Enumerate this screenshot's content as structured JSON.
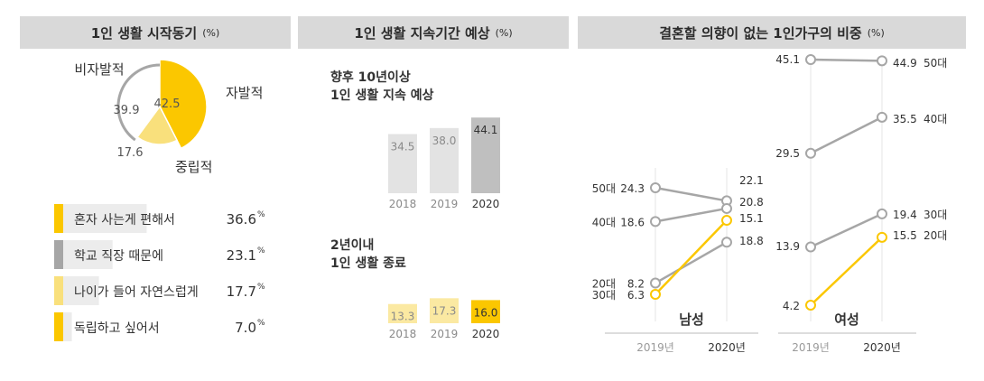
{
  "headers": [
    {
      "title": "1인 생활 시작동기",
      "unit": "(%)"
    },
    {
      "title": "1인 생활 지속기간 예상",
      "unit": "(%)"
    },
    {
      "title": "결혼할 의향이 없는 1인가구의 비중",
      "unit": "(%)"
    }
  ],
  "panel2": {
    "block1_title_1": "향후 10년이상",
    "block1_title_2": "1인 생활 지속 예상",
    "block2_title_1": "2년이내",
    "block2_title_2": "1인 생활 종료"
  },
  "panel3": {
    "male_label": "남성",
    "female_label": "여성"
  },
  "colors": {
    "yellow": "#fbc700",
    "light_yellow": "#f9e07c",
    "pale_yellow": "#fbe9a2",
    "gray": "#a6a6a6",
    "dark_gray": "#bfbfbf",
    "light_gray": "#e3e3e3",
    "header_bg": "#d9d9d9"
  },
  "chart_data": [
    {
      "type": "pie",
      "title": "1인 생활 시작동기",
      "unit": "(%)",
      "slices": [
        {
          "label": "자발적",
          "value": 42.5,
          "color": "#fbc700"
        },
        {
          "label": "중립적",
          "value": 17.6,
          "color": "#f9e07c"
        },
        {
          "label": "비자발적",
          "value": 39.9,
          "color": "#a6a6a6"
        }
      ]
    },
    {
      "type": "bar",
      "orientation": "horizontal",
      "categories": [
        "혼자 사는게 편해서",
        "학교 직장 때문에",
        "나이가 들어 자연스럽게",
        "독립하고 싶어서"
      ],
      "values": [
        36.6,
        23.1,
        17.7,
        7.0
      ],
      "value_labels": [
        "36.6",
        "23.1",
        "17.7",
        "7.0"
      ],
      "value_suffix": "%",
      "colors": [
        "#fbc700",
        "#a6a6a6",
        "#f9e07c",
        "#fbc700"
      ],
      "xlim": [
        0,
        40
      ]
    },
    {
      "type": "bar",
      "title": "향후 10년이상 1인 생활 지속 예상",
      "categories": [
        "2018",
        "2019",
        "2020"
      ],
      "values": [
        34.5,
        38.0,
        44.1
      ],
      "value_labels": [
        "34.5",
        "38.0",
        "44.1"
      ],
      "colors": [
        "#e3e3e3",
        "#e3e3e3",
        "#bfbfbf"
      ]
    },
    {
      "type": "bar",
      "title": "2년이내 1인 생활 종료",
      "categories": [
        "2018",
        "2019",
        "2020"
      ],
      "values": [
        13.3,
        17.3,
        16.0
      ],
      "value_labels": [
        "13.3",
        "17.3",
        "16.0"
      ],
      "colors": [
        "#fbe9a2",
        "#fbe9a2",
        "#fbc700"
      ]
    },
    {
      "type": "line",
      "title": "남성",
      "x": [
        "2019년",
        "2020년"
      ],
      "series": [
        {
          "name": "50대",
          "values": [
            24.3,
            22.1
          ],
          "labels": [
            "24.3",
            "22.1"
          ],
          "color": "#a6a6a6"
        },
        {
          "name": "40대",
          "values": [
            18.6,
            20.8
          ],
          "labels": [
            "18.6",
            "20.8"
          ],
          "color": "#a6a6a6"
        },
        {
          "name": "20대",
          "values": [
            8.2,
            15.1
          ],
          "labels": [
            "8.2",
            "15.1"
          ],
          "color": "#a6a6a6"
        },
        {
          "name": "30대",
          "values": [
            6.3,
            18.8
          ],
          "labels": [
            "6.3",
            "18.8"
          ],
          "color": "#fbc700"
        }
      ]
    },
    {
      "type": "line",
      "title": "여성",
      "x": [
        "2019년",
        "2020년"
      ],
      "series": [
        {
          "name": "50대",
          "values": [
            45.1,
            44.9
          ],
          "labels": [
            "45.1",
            "44.9"
          ],
          "color": "#a6a6a6"
        },
        {
          "name": "40대",
          "values": [
            29.5,
            35.5
          ],
          "labels": [
            "29.5",
            "35.5"
          ],
          "color": "#a6a6a6"
        },
        {
          "name": "30대",
          "values": [
            13.9,
            19.4
          ],
          "labels": [
            "13.9",
            "19.4"
          ],
          "color": "#a6a6a6"
        },
        {
          "name": "20대",
          "values": [
            4.2,
            15.5
          ],
          "labels": [
            "4.2",
            "15.5"
          ],
          "color": "#fbc700"
        }
      ]
    }
  ]
}
